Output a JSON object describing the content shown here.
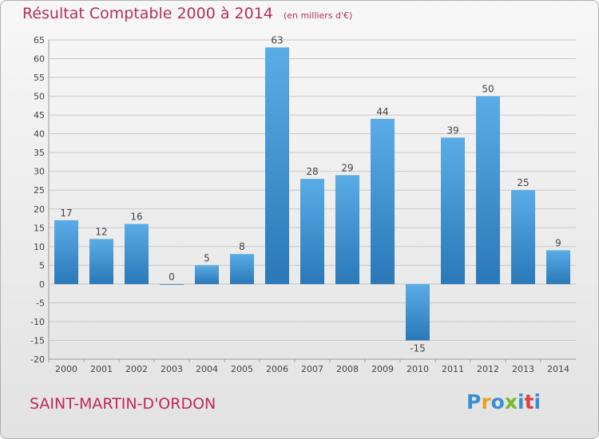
{
  "header": {
    "title": "Résultat Comptable 2000 à 2014",
    "subtitle": "(en milliers d'€)"
  },
  "footer": {
    "commune": "SAINT-MARTIN-D'ORDON",
    "logo_text": "Proxiti",
    "logo_colors": [
      "#3a8fd0",
      "#e8a020",
      "#3a8fd0",
      "#7ab82a",
      "#3a8fd0",
      "#e04040",
      "#3a8fd0"
    ]
  },
  "colors": {
    "bar_top": "#5aace6",
    "bar_bottom": "#2a78b8",
    "grid": "#c8c8c8",
    "axis": "#999999"
  },
  "chart_data": {
    "type": "bar",
    "title": "Résultat Comptable 2000 à 2014",
    "subtitle": "(en milliers d'€)",
    "categories": [
      "2000",
      "2001",
      "2002",
      "2003",
      "2004",
      "2005",
      "2006",
      "2007",
      "2008",
      "2009",
      "2010",
      "2011",
      "2012",
      "2013",
      "2014"
    ],
    "values": [
      17,
      12,
      16,
      0,
      5,
      8,
      63,
      28,
      29,
      44,
      -15,
      39,
      50,
      25,
      9
    ],
    "ylim": [
      -20,
      65
    ],
    "yticks": [
      -20,
      -15,
      -10,
      -5,
      0,
      5,
      10,
      15,
      20,
      25,
      30,
      35,
      40,
      45,
      50,
      55,
      60,
      65
    ],
    "grid": true,
    "legend": "none"
  }
}
